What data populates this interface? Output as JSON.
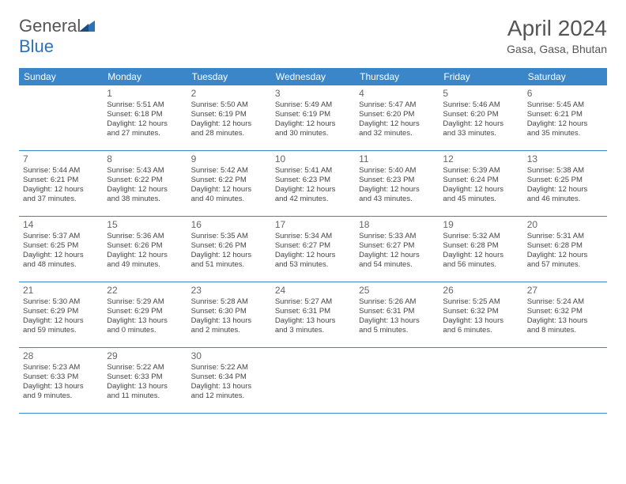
{
  "logo": {
    "text1": "General",
    "text2": "Blue"
  },
  "title": "April 2024",
  "location": "Gasa, Gasa, Bhutan",
  "colors": {
    "header_bg": "#3a86c8",
    "header_text": "#ffffff",
    "border": "#3a86c8",
    "body_text": "#444444",
    "title_text": "#555555",
    "logo_gray": "#555555",
    "logo_blue": "#2d71b8",
    "background": "#ffffff"
  },
  "weekdays": [
    "Sunday",
    "Monday",
    "Tuesday",
    "Wednesday",
    "Thursday",
    "Friday",
    "Saturday"
  ],
  "weeks": [
    [
      {
        "day": "",
        "lines": []
      },
      {
        "day": "1",
        "lines": [
          "Sunrise: 5:51 AM",
          "Sunset: 6:18 PM",
          "Daylight: 12 hours",
          "and 27 minutes."
        ]
      },
      {
        "day": "2",
        "lines": [
          "Sunrise: 5:50 AM",
          "Sunset: 6:19 PM",
          "Daylight: 12 hours",
          "and 28 minutes."
        ]
      },
      {
        "day": "3",
        "lines": [
          "Sunrise: 5:49 AM",
          "Sunset: 6:19 PM",
          "Daylight: 12 hours",
          "and 30 minutes."
        ]
      },
      {
        "day": "4",
        "lines": [
          "Sunrise: 5:47 AM",
          "Sunset: 6:20 PM",
          "Daylight: 12 hours",
          "and 32 minutes."
        ]
      },
      {
        "day": "5",
        "lines": [
          "Sunrise: 5:46 AM",
          "Sunset: 6:20 PM",
          "Daylight: 12 hours",
          "and 33 minutes."
        ]
      },
      {
        "day": "6",
        "lines": [
          "Sunrise: 5:45 AM",
          "Sunset: 6:21 PM",
          "Daylight: 12 hours",
          "and 35 minutes."
        ]
      }
    ],
    [
      {
        "day": "7",
        "lines": [
          "Sunrise: 5:44 AM",
          "Sunset: 6:21 PM",
          "Daylight: 12 hours",
          "and 37 minutes."
        ]
      },
      {
        "day": "8",
        "lines": [
          "Sunrise: 5:43 AM",
          "Sunset: 6:22 PM",
          "Daylight: 12 hours",
          "and 38 minutes."
        ]
      },
      {
        "day": "9",
        "lines": [
          "Sunrise: 5:42 AM",
          "Sunset: 6:22 PM",
          "Daylight: 12 hours",
          "and 40 minutes."
        ]
      },
      {
        "day": "10",
        "lines": [
          "Sunrise: 5:41 AM",
          "Sunset: 6:23 PM",
          "Daylight: 12 hours",
          "and 42 minutes."
        ]
      },
      {
        "day": "11",
        "lines": [
          "Sunrise: 5:40 AM",
          "Sunset: 6:23 PM",
          "Daylight: 12 hours",
          "and 43 minutes."
        ]
      },
      {
        "day": "12",
        "lines": [
          "Sunrise: 5:39 AM",
          "Sunset: 6:24 PM",
          "Daylight: 12 hours",
          "and 45 minutes."
        ]
      },
      {
        "day": "13",
        "lines": [
          "Sunrise: 5:38 AM",
          "Sunset: 6:25 PM",
          "Daylight: 12 hours",
          "and 46 minutes."
        ]
      }
    ],
    [
      {
        "day": "14",
        "lines": [
          "Sunrise: 5:37 AM",
          "Sunset: 6:25 PM",
          "Daylight: 12 hours",
          "and 48 minutes."
        ]
      },
      {
        "day": "15",
        "lines": [
          "Sunrise: 5:36 AM",
          "Sunset: 6:26 PM",
          "Daylight: 12 hours",
          "and 49 minutes."
        ]
      },
      {
        "day": "16",
        "lines": [
          "Sunrise: 5:35 AM",
          "Sunset: 6:26 PM",
          "Daylight: 12 hours",
          "and 51 minutes."
        ]
      },
      {
        "day": "17",
        "lines": [
          "Sunrise: 5:34 AM",
          "Sunset: 6:27 PM",
          "Daylight: 12 hours",
          "and 53 minutes."
        ]
      },
      {
        "day": "18",
        "lines": [
          "Sunrise: 5:33 AM",
          "Sunset: 6:27 PM",
          "Daylight: 12 hours",
          "and 54 minutes."
        ]
      },
      {
        "day": "19",
        "lines": [
          "Sunrise: 5:32 AM",
          "Sunset: 6:28 PM",
          "Daylight: 12 hours",
          "and 56 minutes."
        ]
      },
      {
        "day": "20",
        "lines": [
          "Sunrise: 5:31 AM",
          "Sunset: 6:28 PM",
          "Daylight: 12 hours",
          "and 57 minutes."
        ]
      }
    ],
    [
      {
        "day": "21",
        "lines": [
          "Sunrise: 5:30 AM",
          "Sunset: 6:29 PM",
          "Daylight: 12 hours",
          "and 59 minutes."
        ]
      },
      {
        "day": "22",
        "lines": [
          "Sunrise: 5:29 AM",
          "Sunset: 6:29 PM",
          "Daylight: 13 hours",
          "and 0 minutes."
        ]
      },
      {
        "day": "23",
        "lines": [
          "Sunrise: 5:28 AM",
          "Sunset: 6:30 PM",
          "Daylight: 13 hours",
          "and 2 minutes."
        ]
      },
      {
        "day": "24",
        "lines": [
          "Sunrise: 5:27 AM",
          "Sunset: 6:31 PM",
          "Daylight: 13 hours",
          "and 3 minutes."
        ]
      },
      {
        "day": "25",
        "lines": [
          "Sunrise: 5:26 AM",
          "Sunset: 6:31 PM",
          "Daylight: 13 hours",
          "and 5 minutes."
        ]
      },
      {
        "day": "26",
        "lines": [
          "Sunrise: 5:25 AM",
          "Sunset: 6:32 PM",
          "Daylight: 13 hours",
          "and 6 minutes."
        ]
      },
      {
        "day": "27",
        "lines": [
          "Sunrise: 5:24 AM",
          "Sunset: 6:32 PM",
          "Daylight: 13 hours",
          "and 8 minutes."
        ]
      }
    ],
    [
      {
        "day": "28",
        "lines": [
          "Sunrise: 5:23 AM",
          "Sunset: 6:33 PM",
          "Daylight: 13 hours",
          "and 9 minutes."
        ]
      },
      {
        "day": "29",
        "lines": [
          "Sunrise: 5:22 AM",
          "Sunset: 6:33 PM",
          "Daylight: 13 hours",
          "and 11 minutes."
        ]
      },
      {
        "day": "30",
        "lines": [
          "Sunrise: 5:22 AM",
          "Sunset: 6:34 PM",
          "Daylight: 13 hours",
          "and 12 minutes."
        ]
      },
      {
        "day": "",
        "lines": []
      },
      {
        "day": "",
        "lines": []
      },
      {
        "day": "",
        "lines": []
      },
      {
        "day": "",
        "lines": []
      }
    ]
  ]
}
